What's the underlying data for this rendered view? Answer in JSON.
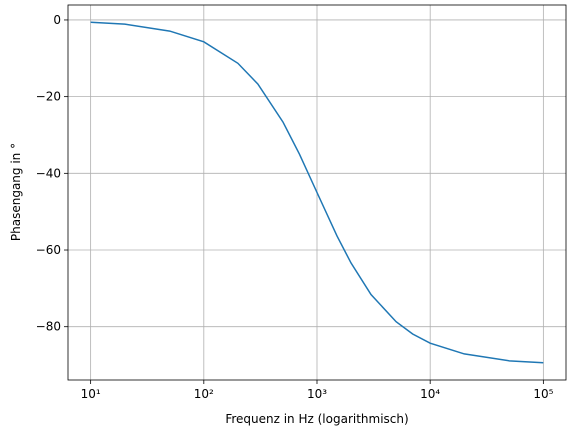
{
  "chart_data": {
    "type": "line",
    "x_label": "Frequenz in Hz (logarithmisch)",
    "y_label": "Phasengang in °",
    "x": [
      10,
      20,
      50,
      100,
      200,
      300,
      500,
      700,
      1000,
      1500,
      2000,
      3000,
      5000,
      7000,
      10000,
      20000,
      50000,
      100000
    ],
    "series": [
      {
        "color": "#1f77b4",
        "values": [
          -0.6,
          -1.1,
          -2.9,
          -5.7,
          -11.3,
          -16.7,
          -26.6,
          -35.0,
          -45.0,
          -56.3,
          -63.4,
          -71.6,
          -78.7,
          -81.9,
          -84.3,
          -87.1,
          -88.9,
          -89.4
        ]
      }
    ],
    "x_log": true,
    "xlim": [
      6.31,
      158489
    ],
    "xticks": [
      {
        "value": 10,
        "label": "10¹"
      },
      {
        "value": 100,
        "label": "10²"
      },
      {
        "value": 1000,
        "label": "10³"
      },
      {
        "value": 10000,
        "label": "10⁴"
      },
      {
        "value": 100000,
        "label": "10⁵"
      }
    ],
    "ylim": [
      -93.9,
      3.9
    ],
    "yticks": [
      {
        "value": -80,
        "label": "−80"
      },
      {
        "value": -60,
        "label": "−60"
      },
      {
        "value": -40,
        "label": "−40"
      },
      {
        "value": -20,
        "label": "−20"
      },
      0
    ],
    "grid": true
  }
}
